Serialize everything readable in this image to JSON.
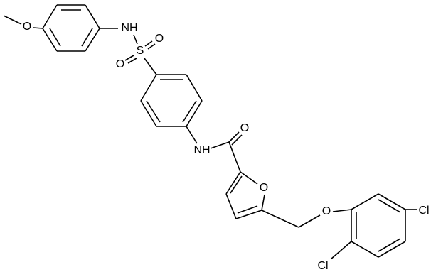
{
  "atoms": {
    "methoxy_o": "O",
    "sulfonamide_nh": "NH",
    "sulfur": "S",
    "sulfonyl_o_left": "O",
    "sulfonyl_o_right": "O",
    "amide_nh": "NH",
    "carbonyl_o": "O",
    "furan_o": "O",
    "ether_o": "O",
    "cl_top": "Cl",
    "cl_bottom": "Cl"
  }
}
